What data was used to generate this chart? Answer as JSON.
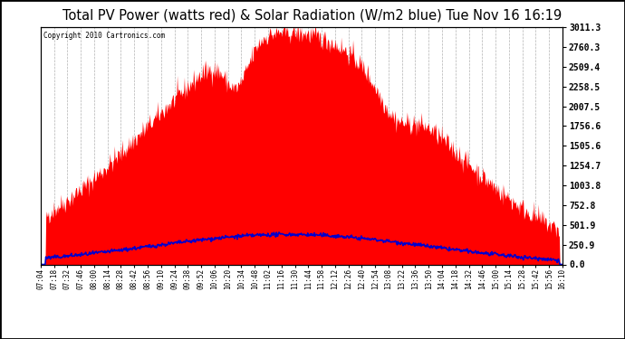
{
  "title": "Total PV Power (watts red) & Solar Radiation (W/m2 blue) Tue Nov 16 16:19",
  "copyright": "Copyright 2010 Cartronics.com",
  "y_max": 3011.3,
  "y_ticks": [
    0.0,
    250.9,
    501.9,
    752.8,
    1003.8,
    1254.7,
    1505.6,
    1756.6,
    2007.5,
    2258.5,
    2509.4,
    2760.3,
    3011.3
  ],
  "background_color": "#ffffff",
  "plot_bg_color": "#ffffff",
  "grid_color": "#aaaaaa",
  "fill_color": "#ff0000",
  "line_color": "#0000cc",
  "title_fontsize": 10.5,
  "x_labels": [
    "07:04",
    "07:18",
    "07:32",
    "07:46",
    "08:00",
    "08:14",
    "08:28",
    "08:42",
    "08:56",
    "09:10",
    "09:24",
    "09:38",
    "09:52",
    "10:06",
    "10:20",
    "10:34",
    "10:48",
    "11:02",
    "11:16",
    "11:30",
    "11:44",
    "11:58",
    "12:12",
    "12:26",
    "12:40",
    "12:54",
    "13:08",
    "13:22",
    "13:36",
    "13:50",
    "14:04",
    "14:18",
    "14:32",
    "14:46",
    "15:00",
    "15:14",
    "15:28",
    "15:42",
    "15:56",
    "16:10"
  ]
}
